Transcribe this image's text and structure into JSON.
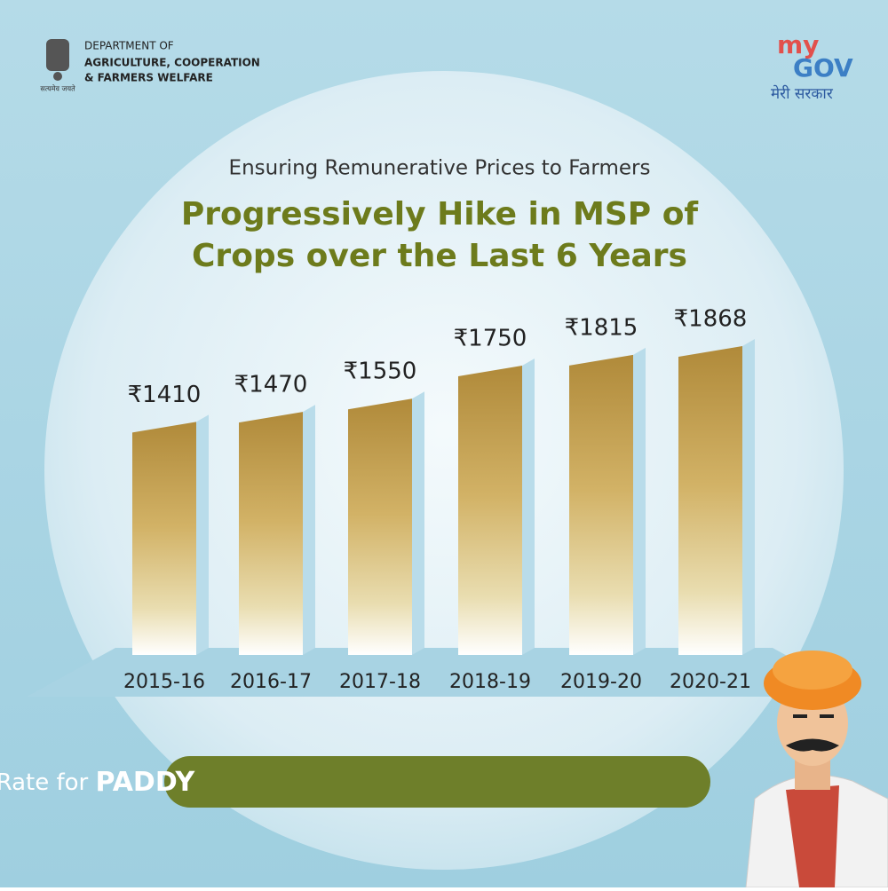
{
  "header": {
    "department": [
      "DEPARTMENT OF",
      "AGRICULTURE, COOPERATION",
      "& FARMERS WELFARE"
    ],
    "emblem_motto": "सत्यमेव जयते",
    "logo": [
      "my",
      "GOV",
      "मेरी सरकार"
    ]
  },
  "chart_data": {
    "type": "bar",
    "subtitle": "Ensuring Remunerative Prices to Farmers",
    "title": [
      "Progressively Hike in MSP of",
      "Crops over the Last 6 Years"
    ],
    "categories": [
      "2015-16",
      "2016-17",
      "2017-18",
      "2018-19",
      "2019-20",
      "2020-21"
    ],
    "values": [
      1410,
      1470,
      1550,
      1750,
      1815,
      1868
    ],
    "value_labels": [
      "₹1410",
      "₹1470",
      "₹1550",
      "₹1750",
      "₹1815",
      "₹1868"
    ],
    "color": "#c9a24a"
  },
  "caption": {
    "text": "Per Quintal MSP Rate for",
    "emphasis": "PADDY"
  }
}
